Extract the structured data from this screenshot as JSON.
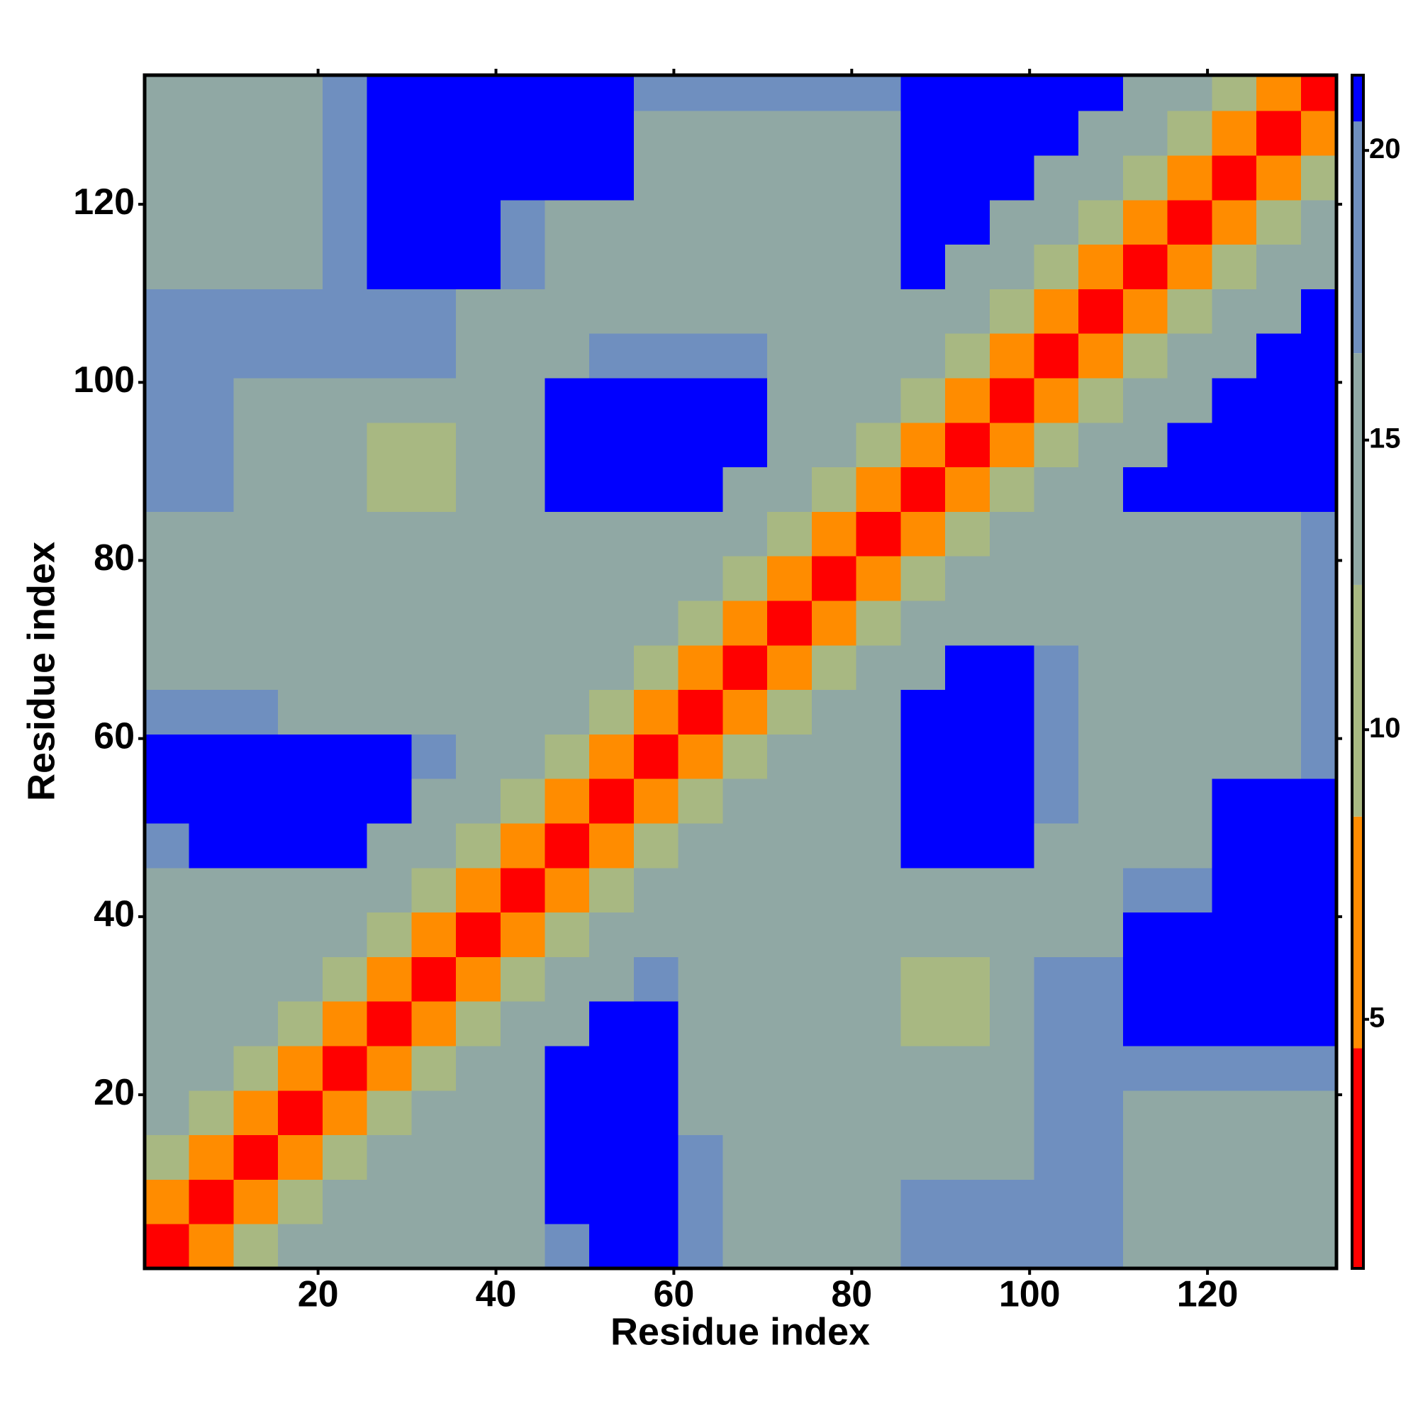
{
  "chart_data": {
    "type": "heatmap",
    "xlabel": "Residue index",
    "ylabel": "Residue index",
    "xlim": [
      0.5,
      134.5
    ],
    "ylim": [
      0.5,
      134.5
    ],
    "xticks": [
      20,
      40,
      60,
      80,
      100,
      120
    ],
    "yticks": [
      20,
      40,
      60,
      80,
      100,
      120
    ],
    "xbins": [
      0.5,
      5.5,
      10.5,
      15.5,
      20.5,
      25.5,
      30.5,
      35.5,
      40.5,
      45.5,
      50.5,
      55.5,
      60.5,
      65.5,
      70.5,
      75.5,
      80.5,
      85.5,
      90.5,
      95.5,
      100.5,
      105.5,
      110.5,
      115.5,
      120.5,
      125.5,
      130.5,
      134.5
    ],
    "ybins": [
      0.5,
      5.5,
      10.5,
      15.5,
      20.5,
      25.5,
      30.5,
      35.5,
      40.5,
      45.5,
      50.5,
      55.5,
      60.5,
      65.5,
      70.5,
      75.5,
      80.5,
      85.5,
      90.5,
      95.5,
      100.5,
      105.5,
      110.5,
      115.5,
      120.5,
      125.5,
      130.5,
      134.5
    ],
    "values": [
      [
        3,
        7,
        11,
        14,
        16,
        13,
        13,
        15,
        15,
        18,
        21,
        21,
        18,
        13,
        13,
        13,
        15,
        18,
        18,
        18,
        18,
        18,
        15,
        15,
        15,
        15,
        15
      ],
      [
        7,
        3,
        7,
        11,
        14,
        16,
        13,
        15,
        15,
        21,
        21,
        21,
        18,
        13,
        13,
        13,
        15,
        18,
        18,
        18,
        18,
        18,
        15,
        13,
        13,
        15,
        15
      ],
      [
        11,
        7,
        3,
        7,
        11,
        14,
        16,
        15,
        15,
        21,
        21,
        21,
        18,
        13,
        13,
        13,
        14,
        14,
        14,
        14,
        18,
        18,
        15,
        13,
        13,
        15,
        15
      ],
      [
        14,
        11,
        7,
        3,
        7,
        11,
        14,
        16,
        15,
        21,
        21,
        21,
        13,
        13,
        13,
        13,
        14,
        14,
        14,
        14,
        18,
        18,
        15,
        15,
        15,
        15,
        15
      ],
      [
        16,
        14,
        11,
        7,
        3,
        7,
        11,
        14,
        16,
        21,
        21,
        21,
        13,
        13,
        13,
        13,
        14,
        14,
        14,
        14,
        18,
        18,
        17,
        17,
        17,
        17,
        17
      ],
      [
        13,
        16,
        14,
        11,
        7,
        3,
        7,
        11,
        14,
        16,
        21,
        21,
        13,
        13,
        13,
        13,
        14,
        12,
        12,
        14,
        19,
        19,
        21,
        21,
        21,
        21,
        21
      ],
      [
        13,
        13,
        16,
        14,
        11,
        7,
        3,
        7,
        11,
        14,
        16,
        19,
        13,
        13,
        13,
        13,
        14,
        12,
        12,
        14,
        19,
        19,
        21,
        21,
        21,
        21,
        21
      ],
      [
        15,
        15,
        15,
        16,
        14,
        11,
        7,
        3,
        7,
        11,
        14,
        16,
        14,
        13,
        13,
        13,
        14,
        14,
        14,
        14,
        15,
        15,
        21,
        21,
        21,
        21,
        21
      ],
      [
        15,
        15,
        15,
        15,
        16,
        14,
        11,
        7,
        3,
        7,
        11,
        14,
        16,
        14,
        13,
        13,
        14,
        14,
        14,
        14,
        15,
        15,
        17,
        17,
        21,
        21,
        21
      ],
      [
        18,
        21,
        21,
        21,
        21,
        16,
        14,
        11,
        7,
        3,
        7,
        11,
        14,
        16,
        14,
        14,
        15,
        21,
        21,
        21,
        15,
        15,
        15,
        15,
        21,
        21,
        21
      ],
      [
        21,
        21,
        21,
        21,
        21,
        21,
        16,
        14,
        11,
        7,
        3,
        7,
        11,
        14,
        16,
        14,
        15,
        21,
        21,
        21,
        19,
        15,
        15,
        15,
        21,
        21,
        21
      ],
      [
        21,
        21,
        21,
        21,
        21,
        21,
        19,
        16,
        14,
        11,
        7,
        3,
        7,
        11,
        14,
        16,
        15,
        21,
        21,
        21,
        19,
        15,
        15,
        15,
        16,
        16,
        18
      ],
      [
        18,
        18,
        18,
        13,
        13,
        13,
        13,
        14,
        16,
        14,
        11,
        7,
        3,
        7,
        11,
        14,
        16,
        21,
        21,
        21,
        19,
        15,
        13,
        13,
        15,
        15,
        17
      ],
      [
        13,
        13,
        13,
        13,
        13,
        13,
        13,
        13,
        14,
        16,
        14,
        11,
        7,
        3,
        7,
        11,
        14,
        16,
        21,
        21,
        19,
        15,
        13,
        13,
        15,
        15,
        17
      ],
      [
        13,
        13,
        13,
        13,
        13,
        13,
        13,
        13,
        13,
        14,
        16,
        14,
        11,
        7,
        3,
        7,
        11,
        14,
        16,
        15,
        15,
        15,
        13,
        13,
        15,
        15,
        17
      ],
      [
        13,
        13,
        13,
        13,
        13,
        13,
        13,
        13,
        13,
        14,
        14,
        16,
        14,
        11,
        7,
        3,
        7,
        11,
        14,
        16,
        15,
        15,
        13,
        13,
        15,
        15,
        17
      ],
      [
        15,
        15,
        14,
        14,
        14,
        14,
        14,
        14,
        14,
        15,
        15,
        15,
        16,
        14,
        11,
        7,
        3,
        7,
        11,
        14,
        16,
        15,
        13,
        13,
        15,
        15,
        17
      ],
      [
        18,
        18,
        14,
        14,
        14,
        12,
        12,
        14,
        14,
        21,
        21,
        21,
        21,
        16,
        14,
        11,
        7,
        3,
        7,
        11,
        14,
        16,
        21,
        21,
        21,
        21,
        21
      ],
      [
        18,
        18,
        14,
        14,
        14,
        12,
        12,
        14,
        14,
        21,
        21,
        21,
        21,
        21,
        16,
        14,
        11,
        7,
        3,
        7,
        11,
        14,
        16,
        21,
        21,
        21,
        21
      ],
      [
        18,
        18,
        14,
        14,
        14,
        14,
        14,
        14,
        14,
        21,
        21,
        21,
        21,
        21,
        15,
        16,
        14,
        11,
        7,
        3,
        7,
        11,
        14,
        16,
        21,
        21,
        21
      ],
      [
        18,
        18,
        18,
        18,
        18,
        19,
        19,
        15,
        15,
        15,
        19,
        19,
        19,
        19,
        15,
        15,
        16,
        14,
        11,
        7,
        3,
        7,
        11,
        14,
        16,
        21,
        21
      ],
      [
        18,
        18,
        18,
        18,
        18,
        19,
        19,
        15,
        15,
        15,
        15,
        15,
        15,
        15,
        15,
        15,
        15,
        16,
        14,
        11,
        7,
        3,
        7,
        11,
        14,
        16,
        21
      ],
      [
        15,
        15,
        15,
        15,
        17,
        21,
        21,
        21,
        17,
        15,
        15,
        15,
        13,
        13,
        13,
        13,
        13,
        21,
        16,
        14,
        11,
        7,
        3,
        7,
        11,
        14,
        16
      ],
      [
        15,
        13,
        13,
        15,
        17,
        21,
        21,
        21,
        17,
        15,
        15,
        15,
        13,
        13,
        13,
        13,
        13,
        21,
        21,
        16,
        14,
        11,
        7,
        3,
        7,
        11,
        14
      ],
      [
        15,
        13,
        13,
        15,
        17,
        21,
        21,
        21,
        21,
        21,
        21,
        16,
        15,
        15,
        15,
        15,
        15,
        21,
        21,
        21,
        16,
        14,
        11,
        7,
        3,
        7,
        11
      ],
      [
        15,
        15,
        15,
        15,
        17,
        21,
        21,
        21,
        21,
        21,
        21,
        16,
        15,
        15,
        15,
        15,
        15,
        21,
        21,
        21,
        21,
        16,
        14,
        11,
        7,
        3,
        7
      ],
      [
        15,
        15,
        15,
        15,
        17,
        21,
        21,
        21,
        21,
        21,
        21,
        18,
        17,
        17,
        17,
        17,
        17,
        21,
        21,
        21,
        21,
        21,
        16,
        14,
        11,
        7,
        3
      ]
    ],
    "colorbar": {
      "levels": [
        0.7,
        4.5,
        8.5,
        12.5,
        16.5,
        20.5,
        21.3
      ],
      "colors": [
        "#ff0000",
        "#ff8c00",
        "#a8b882",
        "#90a8a4",
        "#6f8fbf",
        "#0000ff"
      ],
      "ticks": [
        5,
        10,
        15,
        20
      ]
    }
  }
}
